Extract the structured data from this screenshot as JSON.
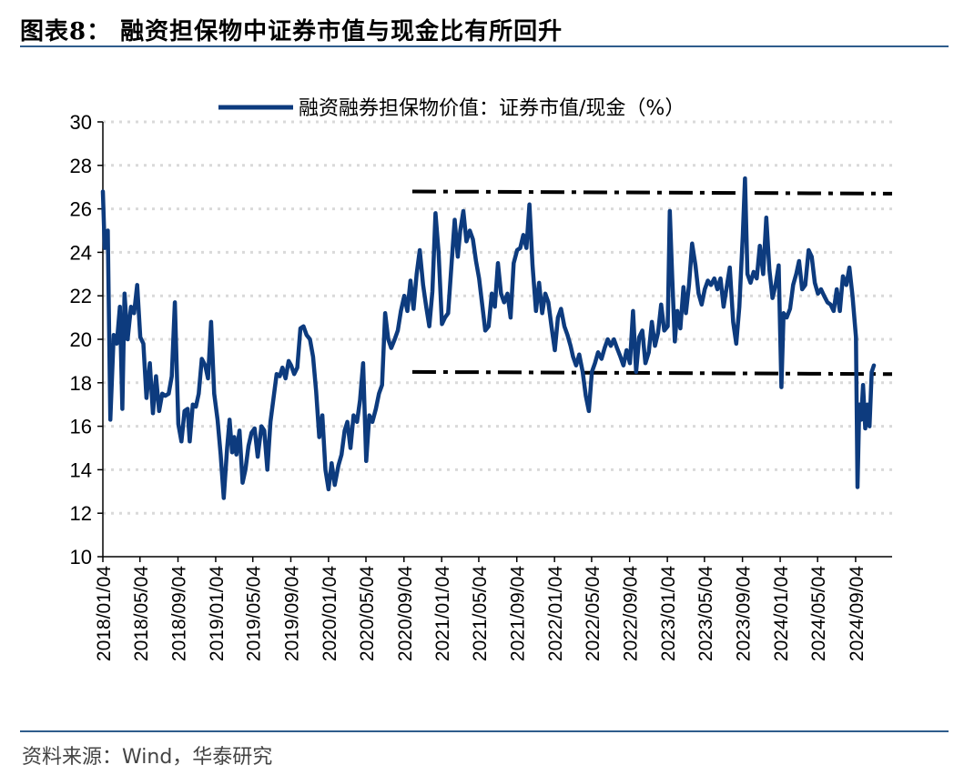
{
  "title": "图表8： 融资担保物中证券市值与现金比有所回升",
  "source": "资料来源：Wind，华泰研究",
  "colors": {
    "series": "#0d3b7e",
    "guide": "#000000",
    "rule": "#2f5d8c",
    "grid": "#d9d9d9"
  },
  "chart_data": {
    "type": "line",
    "title": "",
    "xlabel": "",
    "ylabel": "",
    "legend": "top-center",
    "grid": true,
    "ylim": [
      10,
      30
    ],
    "yticks": [
      10,
      12,
      14,
      16,
      18,
      20,
      22,
      24,
      26,
      28,
      30
    ],
    "xlim": [
      "2018-01-04",
      "2024-12-31"
    ],
    "xticks": [
      "2018/01/04",
      "2018/05/04",
      "2018/09/04",
      "2019/01/04",
      "2019/05/04",
      "2019/09/04",
      "2020/01/04",
      "2020/05/04",
      "2020/09/04",
      "2021/01/04",
      "2021/05/04",
      "2021/09/04",
      "2022/01/04",
      "2022/05/04",
      "2022/09/04",
      "2023/01/04",
      "2023/05/04",
      "2023/09/04",
      "2024/01/04",
      "2024/05/04",
      "2024/09/04"
    ],
    "series": [
      {
        "name": "融资融券担保物价值：证券市值/现金（%）",
        "points": [
          [
            "2018-01-04",
            26.8
          ],
          [
            "2018-01-10",
            24.2
          ],
          [
            "2018-01-20",
            25.0
          ],
          [
            "2018-01-28",
            16.3
          ],
          [
            "2018-02-08",
            20.2
          ],
          [
            "2018-02-18",
            19.8
          ],
          [
            "2018-02-28",
            21.5
          ],
          [
            "2018-03-08",
            16.8
          ],
          [
            "2018-03-15",
            22.1
          ],
          [
            "2018-03-25",
            20.0
          ],
          [
            "2018-04-05",
            21.5
          ],
          [
            "2018-04-15",
            21.2
          ],
          [
            "2018-04-25",
            22.5
          ],
          [
            "2018-05-05",
            20.1
          ],
          [
            "2018-05-15",
            19.8
          ],
          [
            "2018-05-25",
            17.3
          ],
          [
            "2018-06-05",
            18.9
          ],
          [
            "2018-06-15",
            16.6
          ],
          [
            "2018-06-25",
            18.3
          ],
          [
            "2018-07-05",
            16.7
          ],
          [
            "2018-07-15",
            17.5
          ],
          [
            "2018-07-25",
            17.4
          ],
          [
            "2018-08-05",
            17.5
          ],
          [
            "2018-08-15",
            18.3
          ],
          [
            "2018-08-25",
            21.7
          ],
          [
            "2018-09-05",
            16.1
          ],
          [
            "2018-09-15",
            15.3
          ],
          [
            "2018-09-25",
            16.7
          ],
          [
            "2018-10-05",
            16.8
          ],
          [
            "2018-10-12",
            15.3
          ],
          [
            "2018-10-22",
            17.0
          ],
          [
            "2018-11-01",
            16.9
          ],
          [
            "2018-11-10",
            17.5
          ],
          [
            "2018-11-20",
            19.1
          ],
          [
            "2018-12-01",
            18.8
          ],
          [
            "2018-12-10",
            18.2
          ],
          [
            "2018-12-20",
            20.8
          ],
          [
            "2018-12-30",
            17.5
          ],
          [
            "2019-01-10",
            16.3
          ],
          [
            "2019-01-20",
            14.7
          ],
          [
            "2019-01-30",
            12.7
          ],
          [
            "2019-02-10",
            15.0
          ],
          [
            "2019-02-18",
            16.3
          ],
          [
            "2019-02-26",
            14.8
          ],
          [
            "2019-03-05",
            15.5
          ],
          [
            "2019-03-12",
            14.7
          ],
          [
            "2019-03-22",
            15.8
          ],
          [
            "2019-04-01",
            13.4
          ],
          [
            "2019-04-10",
            14.0
          ],
          [
            "2019-04-20",
            15.1
          ],
          [
            "2019-04-30",
            15.7
          ],
          [
            "2019-05-10",
            15.9
          ],
          [
            "2019-05-20",
            14.6
          ],
          [
            "2019-06-01",
            16.0
          ],
          [
            "2019-06-10",
            15.8
          ],
          [
            "2019-06-20",
            14.0
          ],
          [
            "2019-06-30",
            16.2
          ],
          [
            "2019-07-10",
            17.3
          ],
          [
            "2019-07-20",
            18.4
          ],
          [
            "2019-07-30",
            18.3
          ],
          [
            "2019-08-08",
            18.7
          ],
          [
            "2019-08-18",
            18.2
          ],
          [
            "2019-08-28",
            19.0
          ],
          [
            "2019-09-05",
            18.8
          ],
          [
            "2019-09-15",
            18.4
          ],
          [
            "2019-09-25",
            18.7
          ],
          [
            "2019-10-05",
            20.5
          ],
          [
            "2019-10-15",
            20.6
          ],
          [
            "2019-10-25",
            20.2
          ],
          [
            "2019-11-05",
            20.0
          ],
          [
            "2019-11-15",
            19.2
          ],
          [
            "2019-11-25",
            17.6
          ],
          [
            "2019-12-05",
            15.5
          ],
          [
            "2019-12-15",
            16.5
          ],
          [
            "2019-12-25",
            14.0
          ],
          [
            "2020-01-04",
            13.1
          ],
          [
            "2020-01-14",
            14.3
          ],
          [
            "2020-01-24",
            13.3
          ],
          [
            "2020-02-05",
            14.2
          ],
          [
            "2020-02-15",
            14.7
          ],
          [
            "2020-02-25",
            15.8
          ],
          [
            "2020-03-05",
            16.2
          ],
          [
            "2020-03-15",
            15.0
          ],
          [
            "2020-03-25",
            16.5
          ],
          [
            "2020-04-05",
            16.2
          ],
          [
            "2020-04-15",
            17.2
          ],
          [
            "2020-04-25",
            18.9
          ],
          [
            "2020-05-05",
            14.4
          ],
          [
            "2020-05-15",
            16.5
          ],
          [
            "2020-05-25",
            16.2
          ],
          [
            "2020-06-05",
            16.8
          ],
          [
            "2020-06-15",
            17.5
          ],
          [
            "2020-06-25",
            17.9
          ],
          [
            "2020-07-05",
            21.2
          ],
          [
            "2020-07-15",
            20.0
          ],
          [
            "2020-07-25",
            19.6
          ],
          [
            "2020-08-05",
            20.0
          ],
          [
            "2020-08-15",
            20.4
          ],
          [
            "2020-08-25",
            21.3
          ],
          [
            "2020-09-05",
            22.0
          ],
          [
            "2020-09-15",
            21.3
          ],
          [
            "2020-09-25",
            22.7
          ],
          [
            "2020-10-05",
            21.4
          ],
          [
            "2020-10-15",
            23.0
          ],
          [
            "2020-10-25",
            24.1
          ],
          [
            "2020-11-05",
            22.5
          ],
          [
            "2020-11-15",
            21.5
          ],
          [
            "2020-11-25",
            20.6
          ],
          [
            "2020-12-05",
            22.2
          ],
          [
            "2020-12-15",
            25.8
          ],
          [
            "2020-12-25",
            24.0
          ],
          [
            "2021-01-05",
            20.7
          ],
          [
            "2021-01-15",
            21.0
          ],
          [
            "2021-01-25",
            21.2
          ],
          [
            "2021-02-05",
            23.5
          ],
          [
            "2021-02-15",
            25.5
          ],
          [
            "2021-02-25",
            23.8
          ],
          [
            "2021-03-05",
            25.0
          ],
          [
            "2021-03-15",
            25.9
          ],
          [
            "2021-03-25",
            24.5
          ],
          [
            "2021-04-05",
            25.0
          ],
          [
            "2021-04-15",
            24.6
          ],
          [
            "2021-04-25",
            23.6
          ],
          [
            "2021-05-05",
            22.8
          ],
          [
            "2021-05-15",
            21.6
          ],
          [
            "2021-05-25",
            20.4
          ],
          [
            "2021-06-05",
            20.6
          ],
          [
            "2021-06-15",
            22.1
          ],
          [
            "2021-06-25",
            21.5
          ],
          [
            "2021-07-05",
            23.5
          ],
          [
            "2021-07-15",
            22.1
          ],
          [
            "2021-07-25",
            21.7
          ],
          [
            "2021-08-05",
            22.1
          ],
          [
            "2021-08-15",
            21.0
          ],
          [
            "2021-08-25",
            23.5
          ],
          [
            "2021-09-05",
            24.1
          ],
          [
            "2021-09-15",
            24.2
          ],
          [
            "2021-09-25",
            24.8
          ],
          [
            "2021-10-05",
            24.2
          ],
          [
            "2021-10-15",
            26.2
          ],
          [
            "2021-10-25",
            23.4
          ],
          [
            "2021-11-05",
            21.3
          ],
          [
            "2021-11-15",
            22.6
          ],
          [
            "2021-11-25",
            21.2
          ],
          [
            "2021-12-05",
            22.1
          ],
          [
            "2021-12-15",
            21.7
          ],
          [
            "2021-12-25",
            20.6
          ],
          [
            "2022-01-05",
            19.5
          ],
          [
            "2022-01-15",
            21.0
          ],
          [
            "2022-01-25",
            21.4
          ],
          [
            "2022-02-05",
            20.6
          ],
          [
            "2022-02-15",
            20.2
          ],
          [
            "2022-02-25",
            19.7
          ],
          [
            "2022-03-05",
            19.2
          ],
          [
            "2022-03-15",
            18.8
          ],
          [
            "2022-03-25",
            19.3
          ],
          [
            "2022-04-05",
            18.5
          ],
          [
            "2022-04-15",
            17.4
          ],
          [
            "2022-04-25",
            16.7
          ],
          [
            "2022-05-05",
            18.5
          ],
          [
            "2022-05-15",
            18.9
          ],
          [
            "2022-05-25",
            19.4
          ],
          [
            "2022-06-05",
            19.1
          ],
          [
            "2022-06-15",
            19.6
          ],
          [
            "2022-06-25",
            20.0
          ],
          [
            "2022-07-05",
            19.7
          ],
          [
            "2022-07-15",
            20.0
          ],
          [
            "2022-07-25",
            19.6
          ],
          [
            "2022-08-05",
            19.2
          ],
          [
            "2022-08-15",
            18.8
          ],
          [
            "2022-08-25",
            19.5
          ],
          [
            "2022-09-05",
            18.9
          ],
          [
            "2022-09-15",
            21.3
          ],
          [
            "2022-09-25",
            18.5
          ],
          [
            "2022-10-05",
            20.1
          ],
          [
            "2022-10-15",
            20.4
          ],
          [
            "2022-10-25",
            18.9
          ],
          [
            "2022-11-05",
            19.4
          ],
          [
            "2022-11-15",
            20.8
          ],
          [
            "2022-11-25",
            19.7
          ],
          [
            "2022-12-05",
            20.3
          ],
          [
            "2022-12-15",
            21.6
          ],
          [
            "2022-12-25",
            20.4
          ],
          [
            "2023-01-05",
            20.6
          ],
          [
            "2023-01-12",
            25.9
          ],
          [
            "2023-01-20",
            22.8
          ],
          [
            "2023-01-28",
            19.9
          ],
          [
            "2023-02-05",
            21.3
          ],
          [
            "2023-02-15",
            20.5
          ],
          [
            "2023-02-25",
            22.4
          ],
          [
            "2023-03-05",
            21.2
          ],
          [
            "2023-03-15",
            22.5
          ],
          [
            "2023-03-25",
            24.4
          ],
          [
            "2023-04-05",
            23.4
          ],
          [
            "2023-04-15",
            22.1
          ],
          [
            "2023-04-25",
            21.6
          ],
          [
            "2023-05-05",
            22.3
          ],
          [
            "2023-05-15",
            22.7
          ],
          [
            "2023-05-25",
            22.5
          ],
          [
            "2023-06-05",
            22.8
          ],
          [
            "2023-06-15",
            22.3
          ],
          [
            "2023-06-25",
            22.8
          ],
          [
            "2023-07-05",
            21.5
          ],
          [
            "2023-07-15",
            22.4
          ],
          [
            "2023-07-25",
            23.3
          ],
          [
            "2023-08-05",
            20.8
          ],
          [
            "2023-08-15",
            19.8
          ],
          [
            "2023-08-25",
            21.5
          ],
          [
            "2023-09-05",
            24.8
          ],
          [
            "2023-09-12",
            27.4
          ],
          [
            "2023-09-20",
            23.0
          ],
          [
            "2023-09-30",
            22.6
          ],
          [
            "2023-10-10",
            23.1
          ],
          [
            "2023-10-20",
            22.8
          ],
          [
            "2023-10-30",
            24.3
          ],
          [
            "2023-11-10",
            23.0
          ],
          [
            "2023-11-20",
            25.6
          ],
          [
            "2023-11-30",
            23.2
          ],
          [
            "2023-12-10",
            21.9
          ],
          [
            "2023-12-20",
            22.5
          ],
          [
            "2023-12-30",
            23.4
          ],
          [
            "2024-01-08",
            17.8
          ],
          [
            "2024-01-15",
            21.2
          ],
          [
            "2024-01-25",
            21.0
          ],
          [
            "2024-02-05",
            21.4
          ],
          [
            "2024-02-15",
            22.5
          ],
          [
            "2024-02-25",
            23.0
          ],
          [
            "2024-03-05",
            23.6
          ],
          [
            "2024-03-15",
            22.3
          ],
          [
            "2024-03-25",
            22.5
          ],
          [
            "2024-04-05",
            24.1
          ],
          [
            "2024-04-15",
            23.8
          ],
          [
            "2024-04-25",
            22.6
          ],
          [
            "2024-05-05",
            22.1
          ],
          [
            "2024-05-15",
            22.3
          ],
          [
            "2024-05-25",
            22.0
          ],
          [
            "2024-06-05",
            21.7
          ],
          [
            "2024-06-15",
            21.6
          ],
          [
            "2024-06-25",
            21.3
          ],
          [
            "2024-07-05",
            22.3
          ],
          [
            "2024-07-15",
            21.3
          ],
          [
            "2024-07-25",
            22.9
          ],
          [
            "2024-08-05",
            22.5
          ],
          [
            "2024-08-15",
            23.3
          ],
          [
            "2024-08-25",
            22.0
          ],
          [
            "2024-09-05",
            20.1
          ],
          [
            "2024-09-10",
            13.2
          ],
          [
            "2024-09-16",
            17.0
          ],
          [
            "2024-09-22",
            16.3
          ],
          [
            "2024-09-28",
            17.9
          ],
          [
            "2024-10-05",
            15.9
          ],
          [
            "2024-10-12",
            17.0
          ],
          [
            "2024-10-19",
            16.0
          ],
          [
            "2024-10-26",
            18.5
          ],
          [
            "2024-11-02",
            18.8
          ]
        ]
      }
    ],
    "reference_lines": [
      {
        "style": "dash-dot",
        "from": [
          "2020-10-01",
          26.8
        ],
        "to": [
          "2024-12-31",
          26.7
        ]
      },
      {
        "style": "dash-dot",
        "from": [
          "2020-10-01",
          18.5
        ],
        "to": [
          "2024-12-31",
          18.4
        ]
      }
    ]
  }
}
